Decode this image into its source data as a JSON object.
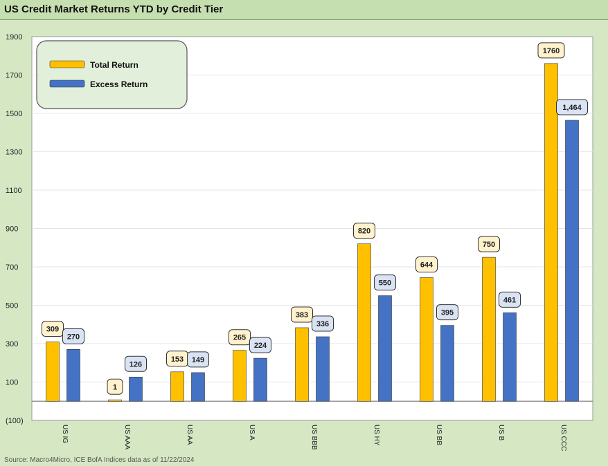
{
  "title": "US Credit Market Returns YTD by Credit Tier",
  "source": "Source: Macro4Micro, ICE BofA Indices    data as of 11/22/2024",
  "colors": {
    "total": "#ffc000",
    "excess": "#4472c4",
    "plot_bg": "#ffffff",
    "grid": "#e4e4e4"
  },
  "chart_data": {
    "type": "bar",
    "title": "US Credit Market Returns YTD by Credit Tier",
    "categories": [
      "US IG",
      "US AAA",
      "US AA",
      "US A",
      "US BBB",
      "US HY",
      "US BB",
      "US B",
      "US CCC"
    ],
    "series": [
      {
        "name": "Total Return",
        "values": [
          309,
          1,
          153,
          265,
          383,
          820,
          644,
          750,
          1760
        ],
        "labels": [
          "309",
          "1",
          "153",
          "265",
          "383",
          "820",
          "644",
          "750",
          "1760"
        ]
      },
      {
        "name": "Excess Return",
        "values": [
          270,
          126,
          149,
          224,
          336,
          550,
          395,
          461,
          1464
        ],
        "labels": [
          "270",
          "126",
          "149",
          "224",
          "336",
          "550",
          "395",
          "461",
          "1,464"
        ]
      }
    ],
    "y_ticks": [
      "1900",
      "1700",
      "1500",
      "1300",
      "1100",
      "900",
      "700",
      "500",
      "300",
      "100",
      "(100)"
    ],
    "ylim": [
      -100,
      1900
    ],
    "legend_position": "top-left",
    "grid": true
  }
}
